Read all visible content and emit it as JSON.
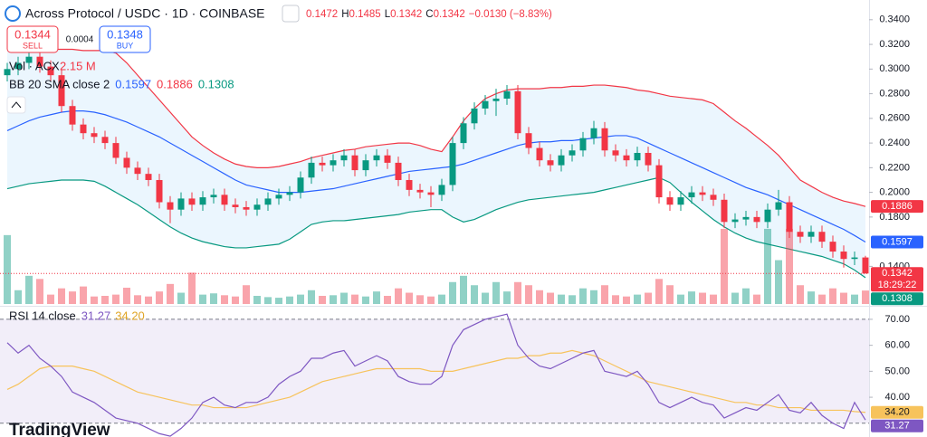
{
  "header": {
    "title": "Across Protocol / USDC · 1D · COINBASE",
    "ohlc": [
      "0.1472",
      "H",
      "0.1485",
      "L",
      "0.1342",
      "C",
      "0.1342",
      "−0.0130 (−8.83%)"
    ],
    "sell_price": "0.1344",
    "sell": "SELL",
    "spread": "0.0004",
    "buy_price": "0.1348",
    "buy": "BUY",
    "brand": "TradingView"
  },
  "chart_data": [
    {
      "type": "candlestick",
      "ylim": [
        0.108,
        0.356
      ],
      "yticks": [
        {
          "value": 0.14,
          "label": "0.1400"
        },
        {
          "value": 0.18,
          "label": "0.1800"
        },
        {
          "value": 0.2,
          "label": "0.2000"
        },
        {
          "value": 0.22,
          "label": "0.2200"
        },
        {
          "value": 0.24,
          "label": "0.2400"
        },
        {
          "value": 0.26,
          "label": "0.2600"
        },
        {
          "value": 0.28,
          "label": "0.2800"
        },
        {
          "value": 0.3,
          "label": "0.3000"
        },
        {
          "value": 0.32,
          "label": "0.3200"
        },
        {
          "value": 0.34,
          "label": "0.3400"
        }
      ],
      "up_color": "#089981",
      "down_color": "#f23645",
      "open": [
        0.295,
        0.3,
        0.305,
        0.31,
        0.302,
        0.295,
        0.27,
        0.255,
        0.248,
        0.245,
        0.24,
        0.228,
        0.22,
        0.215,
        0.21,
        0.192,
        0.186,
        0.195,
        0.19,
        0.196,
        0.198,
        0.19,
        0.188,
        0.186,
        0.19,
        0.195,
        0.198,
        0.2,
        0.212,
        0.224,
        0.222,
        0.226,
        0.23,
        0.218,
        0.226,
        0.23,
        0.224,
        0.21,
        0.202,
        0.2,
        0.198,
        0.206,
        0.24,
        0.256,
        0.268,
        0.274,
        0.276,
        0.282,
        0.248,
        0.236,
        0.226,
        0.222,
        0.23,
        0.234,
        0.244,
        0.252,
        0.234,
        0.23,
        0.226,
        0.232,
        0.222,
        0.196,
        0.19,
        0.196,
        0.2,
        0.198,
        0.194,
        0.176,
        0.178,
        0.18,
        0.176,
        0.186,
        0.192,
        0.168,
        0.164,
        0.168,
        0.16,
        0.152,
        0.146,
        0.1472
      ],
      "high": [
        0.305,
        0.31,
        0.315,
        0.315,
        0.307,
        0.3,
        0.275,
        0.26,
        0.253,
        0.25,
        0.245,
        0.233,
        0.225,
        0.22,
        0.215,
        0.197,
        0.2,
        0.2,
        0.201,
        0.203,
        0.203,
        0.195,
        0.193,
        0.195,
        0.2,
        0.203,
        0.205,
        0.217,
        0.229,
        0.229,
        0.231,
        0.235,
        0.235,
        0.231,
        0.235,
        0.235,
        0.229,
        0.215,
        0.207,
        0.205,
        0.211,
        0.245,
        0.261,
        0.273,
        0.279,
        0.284,
        0.287,
        0.287,
        0.253,
        0.241,
        0.231,
        0.235,
        0.239,
        0.249,
        0.258,
        0.257,
        0.239,
        0.235,
        0.237,
        0.237,
        0.227,
        0.201,
        0.201,
        0.205,
        0.205,
        0.203,
        0.199,
        0.183,
        0.185,
        0.185,
        0.191,
        0.202,
        0.197,
        0.173,
        0.173,
        0.173,
        0.165,
        0.157,
        0.152,
        0.1485
      ],
      "low": [
        0.29,
        0.295,
        0.3,
        0.297,
        0.29,
        0.265,
        0.25,
        0.243,
        0.24,
        0.235,
        0.223,
        0.215,
        0.21,
        0.205,
        0.187,
        0.175,
        0.181,
        0.185,
        0.185,
        0.191,
        0.185,
        0.183,
        0.181,
        0.181,
        0.185,
        0.19,
        0.193,
        0.195,
        0.207,
        0.217,
        0.217,
        0.221,
        0.213,
        0.213,
        0.221,
        0.219,
        0.205,
        0.197,
        0.195,
        0.188,
        0.193,
        0.201,
        0.235,
        0.251,
        0.263,
        0.262,
        0.271,
        0.243,
        0.231,
        0.221,
        0.217,
        0.217,
        0.225,
        0.229,
        0.239,
        0.229,
        0.225,
        0.221,
        0.221,
        0.217,
        0.191,
        0.185,
        0.185,
        0.191,
        0.193,
        0.189,
        0.171,
        0.171,
        0.173,
        0.171,
        0.171,
        0.181,
        0.163,
        0.159,
        0.159,
        0.155,
        0.147,
        0.139,
        0.141,
        0.1342
      ],
      "close": [
        0.3,
        0.305,
        0.31,
        0.302,
        0.295,
        0.27,
        0.255,
        0.248,
        0.245,
        0.24,
        0.228,
        0.22,
        0.215,
        0.21,
        0.192,
        0.186,
        0.195,
        0.19,
        0.196,
        0.198,
        0.19,
        0.188,
        0.186,
        0.19,
        0.195,
        0.198,
        0.2,
        0.212,
        0.224,
        0.222,
        0.226,
        0.23,
        0.218,
        0.226,
        0.23,
        0.224,
        0.21,
        0.202,
        0.2,
        0.198,
        0.206,
        0.24,
        0.256,
        0.268,
        0.274,
        0.276,
        0.282,
        0.248,
        0.236,
        0.226,
        0.222,
        0.23,
        0.234,
        0.244,
        0.252,
        0.234,
        0.23,
        0.226,
        0.232,
        0.222,
        0.196,
        0.19,
        0.196,
        0.2,
        0.198,
        0.194,
        0.176,
        0.178,
        0.18,
        0.176,
        0.186,
        0.192,
        0.168,
        0.164,
        0.168,
        0.16,
        0.152,
        0.146,
        0.1472,
        0.1342
      ],
      "volume": [
        11000000,
        2200000,
        4500000,
        4000000,
        1500000,
        2500000,
        2000000,
        2800000,
        1200000,
        1300000,
        1500000,
        2600000,
        1400000,
        1200000,
        2000000,
        3200000,
        1800000,
        5000000,
        1500000,
        1700000,
        1400000,
        1200000,
        3000000,
        1300000,
        1100000,
        1000000,
        1200000,
        1500000,
        2200000,
        1300000,
        1400000,
        1800000,
        1500000,
        1200000,
        2000000,
        1300000,
        2500000,
        1800000,
        1400000,
        1200000,
        1500000,
        3500000,
        4500000,
        3000000,
        1800000,
        3500000,
        2000000,
        3500000,
        3000000,
        2200000,
        1800000,
        1500000,
        1400000,
        2500000,
        2200000,
        3000000,
        1400000,
        1200000,
        1500000,
        1800000,
        4000000,
        3000000,
        1500000,
        2000000,
        1800000,
        1500000,
        12000000,
        1800000,
        2500000,
        1500000,
        12000000,
        7000000,
        12000000,
        3000000,
        2000000,
        1500000,
        2500000,
        1800000,
        1500000,
        2150000
      ],
      "volume_lim": [
        0,
        13000000
      ],
      "volume_legend": "Vol · ACX",
      "volume_label": "2.15 M",
      "bb_legend": "BB 20 SMA close 2",
      "bb_values": [
        "0.1597",
        "0.1886",
        "0.1308"
      ],
      "bb": {
        "upper": [
          0.318,
          0.318,
          0.317,
          0.317,
          0.316,
          0.316,
          0.316,
          0.315,
          0.315,
          0.315,
          0.313,
          0.305,
          0.295,
          0.285,
          0.275,
          0.265,
          0.255,
          0.245,
          0.238,
          0.232,
          0.227,
          0.223,
          0.221,
          0.22,
          0.22,
          0.221,
          0.223,
          0.225,
          0.228,
          0.23,
          0.232,
          0.234,
          0.235,
          0.237,
          0.238,
          0.239,
          0.24,
          0.24,
          0.238,
          0.235,
          0.233,
          0.245,
          0.258,
          0.268,
          0.276,
          0.28,
          0.283,
          0.284,
          0.284,
          0.284,
          0.285,
          0.285,
          0.286,
          0.286,
          0.287,
          0.287,
          0.286,
          0.285,
          0.283,
          0.282,
          0.28,
          0.278,
          0.277,
          0.276,
          0.275,
          0.272,
          0.265,
          0.258,
          0.252,
          0.245,
          0.238,
          0.23,
          0.22,
          0.21,
          0.205,
          0.2,
          0.196,
          0.193,
          0.191,
          0.1886
        ],
        "basis": [
          0.25,
          0.254,
          0.258,
          0.261,
          0.263,
          0.265,
          0.266,
          0.266,
          0.265,
          0.263,
          0.26,
          0.257,
          0.253,
          0.249,
          0.245,
          0.24,
          0.235,
          0.23,
          0.225,
          0.22,
          0.215,
          0.21,
          0.206,
          0.204,
          0.202,
          0.2,
          0.2,
          0.2,
          0.201,
          0.202,
          0.203,
          0.205,
          0.207,
          0.209,
          0.211,
          0.213,
          0.215,
          0.217,
          0.218,
          0.219,
          0.22,
          0.221,
          0.223,
          0.226,
          0.229,
          0.232,
          0.235,
          0.238,
          0.24,
          0.241,
          0.241,
          0.242,
          0.242,
          0.243,
          0.244,
          0.245,
          0.246,
          0.246,
          0.244,
          0.24,
          0.236,
          0.232,
          0.228,
          0.224,
          0.22,
          0.216,
          0.212,
          0.208,
          0.204,
          0.201,
          0.198,
          0.194,
          0.19,
          0.186,
          0.182,
          0.178,
          0.174,
          0.17,
          0.165,
          0.1597
        ],
        "lower": [
          0.203,
          0.205,
          0.207,
          0.208,
          0.209,
          0.21,
          0.21,
          0.21,
          0.209,
          0.205,
          0.2,
          0.195,
          0.19,
          0.184,
          0.178,
          0.172,
          0.167,
          0.163,
          0.16,
          0.158,
          0.156,
          0.155,
          0.155,
          0.156,
          0.157,
          0.158,
          0.162,
          0.168,
          0.174,
          0.176,
          0.177,
          0.177,
          0.178,
          0.179,
          0.18,
          0.181,
          0.182,
          0.184,
          0.185,
          0.186,
          0.186,
          0.18,
          0.176,
          0.178,
          0.182,
          0.186,
          0.189,
          0.192,
          0.194,
          0.195,
          0.196,
          0.197,
          0.198,
          0.199,
          0.2,
          0.202,
          0.204,
          0.206,
          0.208,
          0.21,
          0.212,
          0.208,
          0.2,
          0.192,
          0.185,
          0.178,
          0.172,
          0.167,
          0.163,
          0.16,
          0.158,
          0.156,
          0.154,
          0.152,
          0.15,
          0.148,
          0.145,
          0.142,
          0.137,
          0.1308
        ],
        "upper_color": "#f23645",
        "basis_color": "#2962ff",
        "lower_color": "#089981",
        "fill_color": "#2196f3"
      },
      "price_tags": [
        {
          "value": 0.1886,
          "label": "0.1886",
          "color": "#f23645"
        },
        {
          "value": 0.1597,
          "label": "0.1597",
          "color": "#2962ff"
        },
        {
          "value": 0.1342,
          "label": "0.1342",
          "color": "#f23645",
          "countdown": "18:29:22"
        },
        {
          "value": 0.1308,
          "label": "0.1308",
          "color": "#089981"
        }
      ]
    },
    {
      "type": "line",
      "legend": "RSI 14 close",
      "ylim": [
        24.7,
        74.5
      ],
      "yticks": [
        {
          "value": 40,
          "label": "40.00"
        },
        {
          "value": 50,
          "label": "50.00"
        },
        {
          "value": 60,
          "label": "60.00"
        },
        {
          "value": 70,
          "label": "70.00"
        }
      ],
      "bands": [
        30,
        70
      ],
      "band_color": "#7e57c2",
      "series": [
        {
          "color": "#7e57c2",
          "last_label": "31.27",
          "values": [
            61,
            57,
            60,
            55,
            52,
            48,
            42,
            40,
            38,
            35,
            32,
            31,
            30,
            28,
            26,
            25,
            28,
            32,
            38,
            40,
            37,
            36,
            38,
            38,
            40,
            45,
            48,
            50,
            55,
            55,
            57,
            58,
            52,
            54,
            56,
            54,
            48,
            46,
            45,
            45,
            48,
            60,
            66,
            68,
            70,
            71,
            72,
            60,
            55,
            52,
            51,
            53,
            55,
            57,
            58,
            50,
            49,
            48,
            50,
            45,
            38,
            36,
            38,
            40,
            38,
            37,
            32,
            34,
            36,
            35,
            38,
            41,
            35,
            34,
            38,
            33,
            30,
            28,
            38,
            31.27
          ]
        },
        {
          "color": "#f7c35c",
          "last_label": "34.20",
          "values": [
            43,
            45,
            48,
            51,
            52,
            52,
            52,
            51,
            50,
            48,
            46,
            44,
            42,
            41,
            40,
            39,
            38,
            37,
            37,
            36,
            36,
            36,
            36,
            37,
            38,
            39,
            40,
            42,
            44,
            46,
            47,
            48,
            49,
            50,
            51,
            51,
            51,
            51,
            51,
            50,
            50,
            50,
            51,
            52,
            53,
            54,
            55,
            55,
            56,
            56,
            57,
            57,
            58,
            57,
            56,
            54,
            52,
            50,
            48,
            46,
            45,
            44,
            43,
            42,
            41,
            40,
            39,
            38,
            38,
            37,
            37,
            36,
            36,
            36,
            35,
            35,
            35,
            35,
            34.5,
            34.2
          ]
        }
      ]
    }
  ]
}
